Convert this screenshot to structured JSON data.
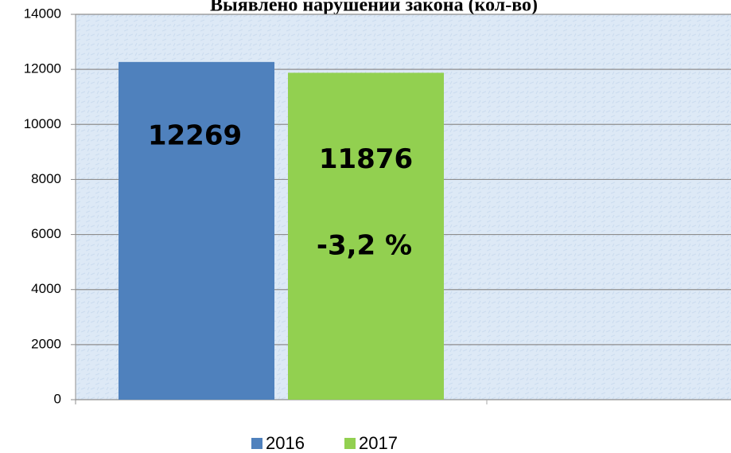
{
  "chart_data": {
    "type": "bar",
    "title": "Выявлено нарушений закона (кол-во)",
    "categories": [
      null
    ],
    "series": [
      {
        "name": "2016",
        "color": "#4f81bd",
        "values": [
          12269
        ]
      },
      {
        "name": "2017",
        "color": "#92d050",
        "values": [
          11876
        ]
      }
    ],
    "annotations": [
      "-3,2 %"
    ],
    "ylim": [
      0,
      14000
    ],
    "yticks": [
      0,
      2000,
      4000,
      6000,
      8000,
      10000,
      12000,
      14000
    ],
    "grid": true,
    "legend": "bottom"
  }
}
